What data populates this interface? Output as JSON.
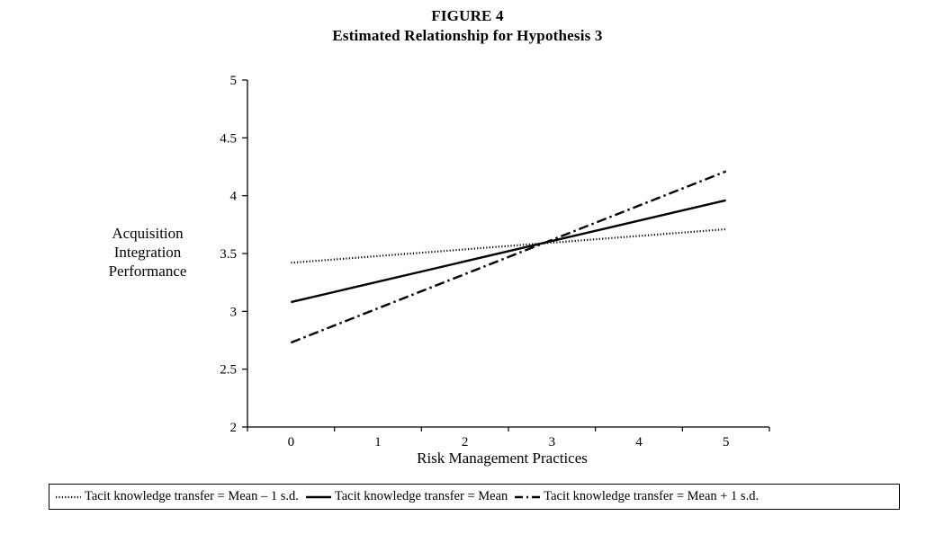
{
  "figure": {
    "number": "FIGURE 4",
    "title": "Estimated Relationship for Hypothesis 3"
  },
  "chart_data": {
    "type": "line",
    "xlabel": "Risk Management Practices",
    "ylabel_lines": [
      "Acquisition",
      "Integration",
      "Performance"
    ],
    "xlim": [
      -0.5,
      5.5
    ],
    "ylim": [
      2,
      5
    ],
    "x_ticks": [
      0,
      1,
      2,
      3,
      4,
      5
    ],
    "x_tick_labels": [
      "0",
      "1",
      "2",
      "3",
      "4",
      "5"
    ],
    "y_ticks": [
      2,
      2.5,
      3,
      3.5,
      4,
      4.5,
      5
    ],
    "y_tick_labels": [
      "2",
      "2.5",
      "3",
      "3.5",
      "4",
      "4.5",
      "5"
    ],
    "grid": false,
    "legend_position": "bottom",
    "series": [
      {
        "name": "Tacit knowledge transfer = Mean – 1 s.d.",
        "style": "dotted",
        "color": "#000000",
        "x": [
          0,
          5
        ],
        "y": [
          3.42,
          3.71
        ]
      },
      {
        "name": "Tacit knowledge transfer = Mean",
        "style": "solid",
        "color": "#000000",
        "x": [
          0,
          5
        ],
        "y": [
          3.08,
          3.96
        ]
      },
      {
        "name": "Tacit knowledge transfer = Mean + 1 s.d.",
        "style": "dash-dot",
        "color": "#000000",
        "x": [
          0,
          5
        ],
        "y": [
          2.73,
          4.21
        ]
      }
    ]
  }
}
